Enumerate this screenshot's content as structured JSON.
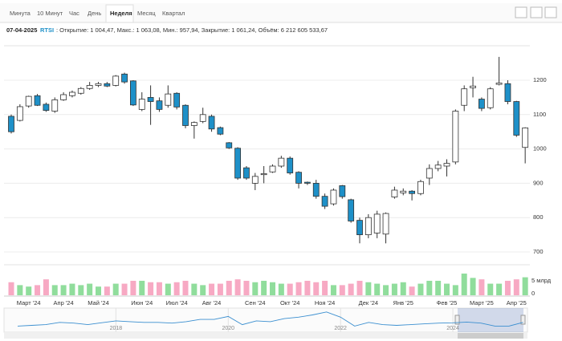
{
  "tabs": [
    {
      "label": "Минута",
      "active": false
    },
    {
      "label": "10 Минут",
      "active": false
    },
    {
      "label": "Час",
      "active": false
    },
    {
      "label": "День",
      "active": false
    },
    {
      "label": "Неделя",
      "active": true
    },
    {
      "label": "Месяц",
      "active": false
    },
    {
      "label": "Квартал",
      "active": false
    }
  ],
  "info": {
    "date": "07-04-2025",
    "symbol": "RTSI",
    "text": ": Открытие: 1 004,47, Макс.: 1 063,08, Мин.: 957,94, Закрытие: 1 061,24, Объём: 6 212 605 533,67"
  },
  "chart_data": [
    {
      "type": "candlestick",
      "categories": [
        null,
        null,
        "Март '24",
        null,
        null,
        null,
        "Апр '24",
        null,
        null,
        null,
        "Май '24",
        null,
        null,
        null,
        null,
        "Июн '24",
        null,
        null,
        null,
        "Июл '24",
        null,
        null,
        null,
        "Авг '24",
        null,
        null,
        null,
        null,
        "Сен '24",
        null,
        null,
        null,
        "Окт '24",
        null,
        null,
        null,
        "Ноя '24",
        null,
        null,
        null,
        null,
        "Дек '24",
        null,
        null,
        null,
        "Янв '25",
        null,
        null,
        null,
        null,
        "Фев '25",
        null,
        null,
        null,
        "Март '25",
        null,
        null,
        null,
        "Апр '25",
        null
      ],
      "open": [
        1095,
        1083,
        1125,
        1155,
        1130,
        1110,
        1143,
        1155,
        1162,
        1176,
        1185,
        1190,
        1185,
        1218,
        1198,
        1115,
        1150,
        1140,
        1127,
        1162,
        1127,
        1068,
        1080,
        1095,
        1062,
        1018,
        1002,
        945,
        900,
        925,
        933,
        950,
        973,
        932,
        903,
        900,
        862,
        840,
        893,
        852,
        792,
        750,
        755,
        752,
        860,
        872,
        877,
        870,
        915,
        943,
        950,
        962,
        1127,
        1178,
        1145,
        1120,
        1188,
        1190,
        1138,
        1004.47
      ],
      "high": [
        1100,
        1130,
        1155,
        1160,
        1135,
        1150,
        1165,
        1170,
        1180,
        1195,
        1195,
        1195,
        1215,
        1222,
        1200,
        1165,
        1185,
        1150,
        1185,
        1165,
        1130,
        1080,
        1120,
        1100,
        1065,
        1020,
        1005,
        950,
        930,
        950,
        955,
        980,
        978,
        935,
        905,
        910,
        870,
        885,
        895,
        855,
        800,
        810,
        820,
        815,
        890,
        885,
        880,
        910,
        955,
        965,
        970,
        1115,
        1185,
        1210,
        1150,
        1180,
        1268,
        1200,
        1140,
        1063.08
      ],
      "low": [
        1045,
        1080,
        1120,
        1125,
        1108,
        1105,
        1140,
        1150,
        1158,
        1172,
        1180,
        1180,
        1182,
        1190,
        1125,
        1110,
        1070,
        1108,
        1120,
        1115,
        1060,
        1030,
        1075,
        1050,
        1040,
        1000,
        910,
        910,
        880,
        900,
        930,
        945,
        925,
        885,
        895,
        855,
        825,
        835,
        855,
        785,
        725,
        740,
        740,
        725,
        855,
        865,
        850,
        865,
        895,
        935,
        920,
        955,
        1110,
        1150,
        1110,
        1115,
        1185,
        1130,
        1035,
        957.94
      ],
      "close": [
        1050,
        1123,
        1153,
        1127,
        1112,
        1143,
        1158,
        1165,
        1176,
        1185,
        1190,
        1183,
        1212,
        1195,
        1128,
        1145,
        1138,
        1115,
        1160,
        1122,
        1068,
        1077,
        1100,
        1058,
        1043,
        1003,
        915,
        915,
        920,
        928,
        950,
        973,
        930,
        900,
        900,
        862,
        833,
        880,
        861,
        790,
        750,
        800,
        810,
        812,
        880,
        877,
        870,
        905,
        943,
        953,
        958,
        1110,
        1175,
        1183,
        1118,
        1175,
        1192,
        1138,
        1040,
        1061.24
      ],
      "up_color": "#ffffff",
      "down_color": "#1e90c8",
      "ylim": [
        675,
        1300
      ],
      "yticks": [
        700,
        800,
        900,
        1000,
        1100,
        1200
      ],
      "grid": true
    },
    {
      "type": "bar",
      "values": [
        4500000000,
        3500000000,
        3000000000,
        3500000000,
        5500000000,
        3500000000,
        3500000000,
        4000000000,
        3500000000,
        4000000000,
        3000000000,
        3000000000,
        4000000000,
        4000000000,
        5000000000,
        5000000000,
        4500000000,
        4500000000,
        4000000000,
        4500000000,
        5000000000,
        4000000000,
        3500000000,
        4000000000,
        4000000000,
        5000000000,
        5500000000,
        5000000000,
        4500000000,
        5000000000,
        4500000000,
        4000000000,
        4000000000,
        4500000000,
        5000000000,
        4500000000,
        5000000000,
        3500000000,
        3500000000,
        4000000000,
        5000000000,
        4500000000,
        4000000000,
        3500000000,
        4000000000,
        4500000000,
        3000000000,
        4000000000,
        5000000000,
        5000000000,
        4000000000,
        3500000000,
        7500000000,
        6000000000,
        5500000000,
        4000000000,
        4000000000,
        5000000000,
        5500000000,
        6212605533.67
      ],
      "up_color": "#90dd9c",
      "down_color": "#f7a9c3",
      "ylim": [
        0,
        9700000000
      ],
      "yticks": [
        0,
        {
          "value": 5000000000,
          "label": "5 млрд"
        }
      ]
    },
    {
      "type": "line",
      "x": [
        2016.25,
        2016.5,
        2016.75,
        2017,
        2017.25,
        2017.5,
        2017.75,
        2018,
        2018.25,
        2018.5,
        2018.75,
        2019,
        2019.25,
        2019.5,
        2019.75,
        2020,
        2020.25,
        2020.5,
        2020.75,
        2021,
        2021.25,
        2021.5,
        2021.75,
        2022,
        2022.25,
        2022.5,
        2022.75,
        2023,
        2023.25,
        2023.5,
        2023.75,
        2024,
        2024.25,
        2024.5,
        2024.75,
        2025,
        2025.25
      ],
      "values": [
        900,
        950,
        1000,
        1150,
        1100,
        1000,
        1130,
        1250,
        1200,
        1150,
        1150,
        1100,
        1200,
        1350,
        1350,
        1550,
        1000,
        1250,
        1200,
        1400,
        1500,
        1650,
        1850,
        1500,
        900,
        1150,
        1000,
        950,
        1000,
        1050,
        1100,
        1120,
        1170,
        1100,
        900,
        900,
        1150
      ],
      "color": "#3b8fd0",
      "xlim": [
        2016.05,
        2025.3
      ],
      "xticks": [
        2018,
        2020,
        2022,
        2024
      ],
      "ylim": [
        600,
        2000
      ]
    }
  ]
}
